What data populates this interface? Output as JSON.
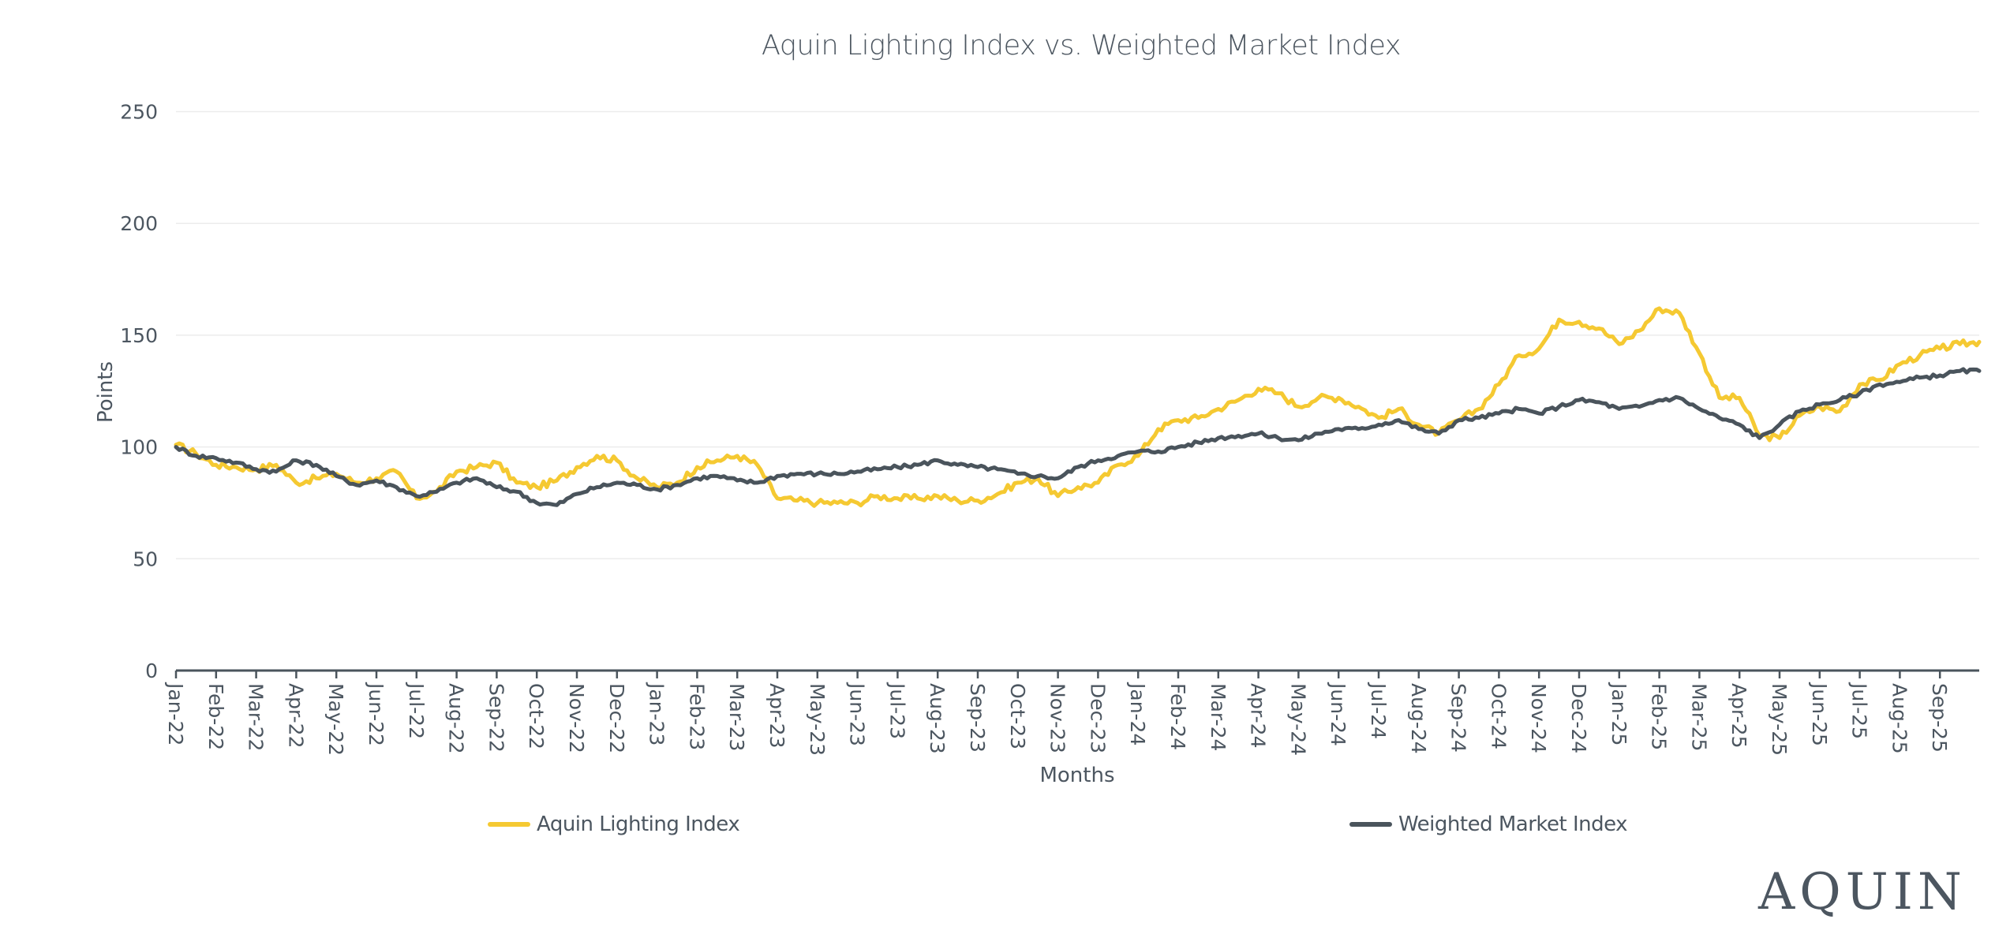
{
  "chart_data": {
    "type": "line",
    "title": "Aquin Lighting Index vs. Weighted Market Index",
    "xlabel": "Months",
    "ylabel": "Points",
    "ylim": [
      0,
      250
    ],
    "yticks": [
      0,
      50,
      100,
      150,
      200,
      250
    ],
    "grid": true,
    "legend_position": "bottom",
    "x_tick_labels": [
      "Jan-22",
      "Feb-22",
      "Mar-22",
      "Apr-22",
      "May-22",
      "Jun-22",
      "Jul-22",
      "Aug-22",
      "Sep-22",
      "Oct-22",
      "Nov-22",
      "Dec-22",
      "Jan-23",
      "Feb-23",
      "Mar-23",
      "Apr-23",
      "May-23",
      "Jun-23",
      "Jul-23",
      "Aug-23",
      "Sep-23",
      "Oct-23",
      "Nov-23",
      "Dec-23",
      "Jan-24",
      "Feb-24",
      "Mar-24",
      "Apr-24",
      "May-24",
      "Jun-24",
      "Jul-24",
      "Aug-24",
      "Sep-24",
      "Oct-24",
      "Nov-24",
      "Dec-24",
      "Jan-25",
      "Feb-25",
      "Mar-25",
      "Apr-25",
      "May-25",
      "Jun-25",
      "Jul-25",
      "Aug-25",
      "Sep-25"
    ],
    "x_range_months": [
      0,
      45
    ],
    "x_step_months": 0.5,
    "series": [
      {
        "name": "Aquin Lighting Index",
        "color": "#f5c932",
        "values": [
          101,
          97,
          92,
          91,
          90,
          92,
          84,
          86,
          88,
          84,
          86,
          89,
          77,
          80,
          89,
          91,
          93,
          84,
          82,
          85,
          91,
          96,
          94,
          86,
          82,
          84,
          91,
          94,
          96,
          92,
          77,
          76,
          75,
          75,
          75,
          78,
          77,
          77,
          78,
          76,
          76,
          79,
          84,
          86,
          78,
          82,
          84,
          92,
          96,
          108,
          112,
          113,
          117,
          121,
          126,
          124,
          118,
          122,
          122,
          118,
          113,
          117,
          110,
          106,
          112,
          117,
          128,
          141,
          144,
          157,
          156,
          153,
          146,
          152,
          162,
          160,
          142,
          122,
          122,
          105,
          104,
          114,
          118,
          116,
          128,
          130,
          137,
          141,
          144,
          146,
          147
        ]
      },
      {
        "name": "Weighted Market Index",
        "color": "#4a545c",
        "values": [
          100,
          96,
          95,
          93,
          90,
          89,
          94,
          92,
          87,
          83,
          85,
          82,
          78,
          80,
          84,
          86,
          82,
          80,
          75,
          74,
          79,
          82,
          84,
          83,
          81,
          83,
          86,
          87,
          85,
          84,
          87,
          88,
          88,
          88,
          89,
          90,
          91,
          92,
          94,
          92,
          91,
          90,
          88,
          87,
          86,
          91,
          94,
          96,
          98,
          98,
          100,
          102,
          104,
          105,
          106,
          104,
          103,
          106,
          108,
          108,
          110,
          112,
          108,
          106,
          112,
          113,
          115,
          117,
          115,
          118,
          121,
          120,
          117,
          118,
          121,
          122,
          117,
          113,
          110,
          104,
          110,
          116,
          119,
          121,
          124,
          128,
          129,
          131,
          132,
          134,
          134
        ]
      }
    ]
  },
  "legend": {
    "items": [
      {
        "label": "Aquin Lighting Index",
        "color": "#f5c932"
      },
      {
        "label": "Weighted Market Index",
        "color": "#4a545c"
      }
    ]
  },
  "branding": {
    "logo_text": "AQUIN"
  }
}
